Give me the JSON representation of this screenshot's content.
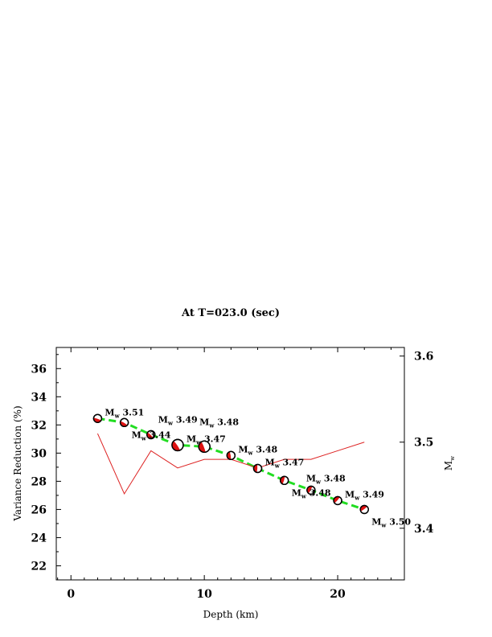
{
  "chart_data": {
    "type": "line",
    "title": "At T=023.0 (sec)",
    "xlabel": "Depth (km)",
    "ylabel": "Variance Reduction (%)",
    "y2label": "M",
    "y2label_sub": "w",
    "xlim": [
      -1.1,
      25
    ],
    "ylim": [
      21.0,
      37.5
    ],
    "y2lim": [
      3.34,
      3.61
    ],
    "x_ticks": [
      0,
      10,
      20
    ],
    "y_ticks": [
      22,
      24,
      26,
      28,
      30,
      32,
      34,
      36
    ],
    "y2_ticks": [
      3.4,
      3.5,
      3.6
    ],
    "grid": false,
    "series": [
      {
        "name": "Variance Reduction",
        "axis": "left",
        "style": "dashed",
        "color": "#22dd22",
        "x": [
          2,
          4,
          6,
          8,
          10,
          12,
          14,
          16,
          18,
          20,
          22
        ],
        "y": [
          32.46,
          32.17,
          31.31,
          30.57,
          30.46,
          29.83,
          28.91,
          28.06,
          27.37,
          26.63,
          26.0
        ],
        "marker": "beachball",
        "marker_size": [
          1,
          1,
          1,
          1.4,
          1.4,
          1,
          1,
          1,
          1,
          1,
          1
        ]
      },
      {
        "name": "Mw",
        "axis": "right",
        "style": "solid",
        "color": "#dd2222",
        "x": [
          2,
          4,
          6,
          8,
          10,
          12,
          14,
          16,
          18,
          20,
          22
        ],
        "y": [
          3.51,
          3.44,
          3.49,
          3.47,
          3.48,
          3.48,
          3.47,
          3.48,
          3.48,
          3.49,
          3.5
        ]
      }
    ],
    "annotations": [
      {
        "prefix": "M",
        "sub": "w",
        "value": "3.51"
      },
      {
        "prefix": "M",
        "sub": "w",
        "value": "3.44"
      },
      {
        "prefix": "M",
        "sub": "w",
        "value": "3.49"
      },
      {
        "prefix": "M",
        "sub": "w",
        "value": "3.47"
      },
      {
        "prefix": "M",
        "sub": "w",
        "value": "3.48"
      },
      {
        "prefix": "M",
        "sub": "w",
        "value": "3.48"
      },
      {
        "prefix": "M",
        "sub": "w",
        "value": "3.47"
      },
      {
        "prefix": "M",
        "sub": "w",
        "value": "3.48"
      },
      {
        "prefix": "M",
        "sub": "w",
        "value": "3.48"
      },
      {
        "prefix": "M",
        "sub": "w",
        "value": "3.49"
      },
      {
        "prefix": "M",
        "sub": "w",
        "value": "3.50"
      }
    ]
  }
}
